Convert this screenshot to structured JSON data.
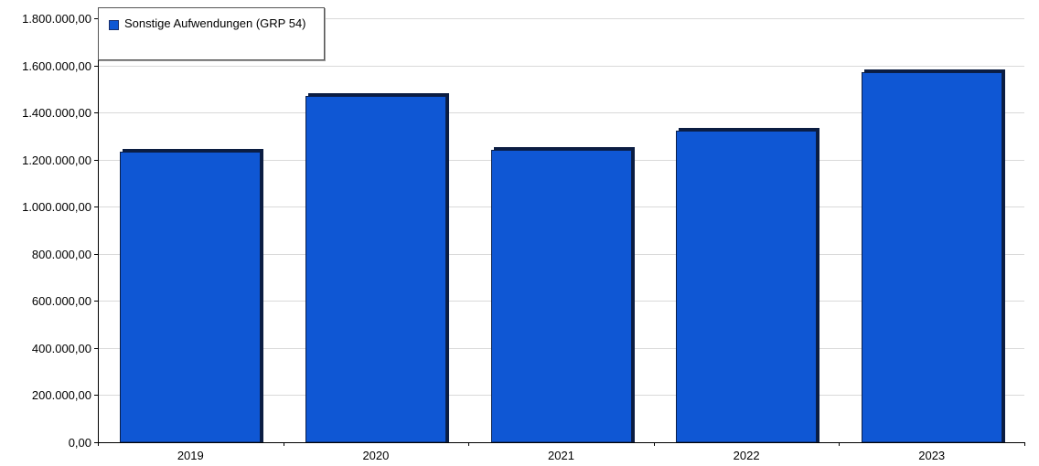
{
  "chart_data": {
    "type": "bar",
    "categories": [
      "2019",
      "2020",
      "2021",
      "2022",
      "2023"
    ],
    "series": [
      {
        "name": "Sonstige Aufwendungen (GRP 54)",
        "values": [
          1234000,
          1470000,
          1242000,
          1323000,
          1572000
        ]
      }
    ],
    "ylim": [
      0,
      1800000
    ],
    "yticks": [
      0,
      200000,
      400000,
      600000,
      800000,
      1000000,
      1200000,
      1400000,
      1600000,
      1800000
    ],
    "ytick_labels": [
      "0,00",
      "200.000,00",
      "400.000,00",
      "600.000,00",
      "800.000,00",
      "1.000.000,00",
      "1.200.000,00",
      "1.400.000,00",
      "1.600.000,00",
      "1.800.000,00"
    ],
    "grid": true,
    "legend_position": "top-left",
    "colors": {
      "bar": "#0f57d4",
      "bar_edge": "#0a1f4a",
      "bar_shadow": "#0b1d42",
      "grid": "#d9d9d9",
      "axis": "#000000"
    }
  },
  "legend": {
    "label": "Sonstige Aufwendungen (GRP 54)"
  }
}
